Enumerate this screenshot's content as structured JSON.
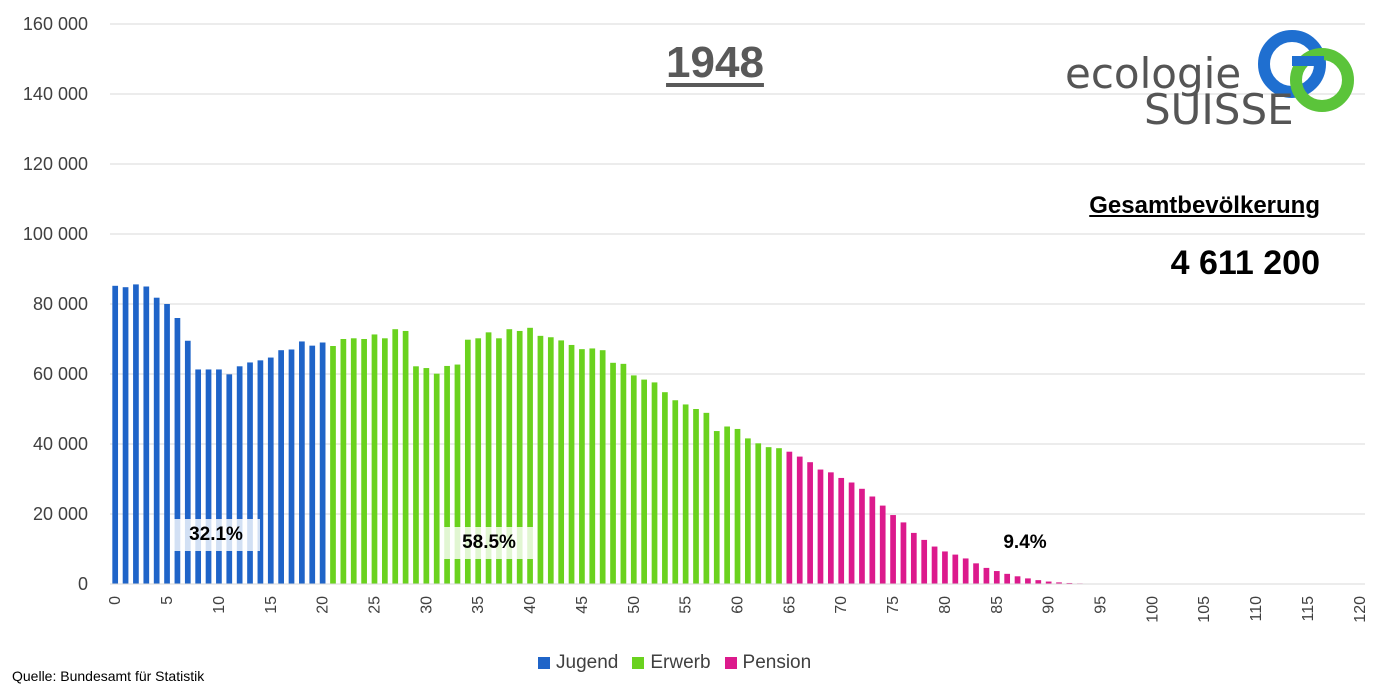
{
  "title": "1948",
  "population": {
    "label": "Gesamtbevölkerung",
    "value": "4 611 200"
  },
  "source": "Quelle: Bundesamt für Statistik",
  "logo": {
    "line1": "ecologie",
    "line2": "SUISSE"
  },
  "shares": {
    "jugend": "32.1%",
    "erwerb": "58.5%",
    "pension": "9.4%"
  },
  "colors": {
    "jugend": "#1f64c8",
    "erwerb": "#6ad21e",
    "pension": "#dc1a8c",
    "logo_blue": "#1f6fd0",
    "logo_green": "#5bc43a"
  },
  "chart_data": {
    "type": "bar",
    "title": "1948",
    "xlabel": "",
    "ylabel": "",
    "xlim": [
      0,
      120
    ],
    "ylim": [
      0,
      160000
    ],
    "y_ticks": [
      "0",
      "20 000",
      "40 000",
      "60 000",
      "80 000",
      "100 000",
      "120 000",
      "140 000",
      "160 000"
    ],
    "x_ticks": [
      "0",
      "5",
      "10",
      "15",
      "20",
      "25",
      "30",
      "35",
      "40",
      "45",
      "50",
      "55",
      "60",
      "65",
      "70",
      "75",
      "80",
      "85",
      "90",
      "95",
      "100",
      "105",
      "110",
      "115",
      "120"
    ],
    "legend": {
      "placement": "bottom",
      "entries": [
        "Jugend",
        "Erwerb",
        "Pension"
      ]
    },
    "grid": true,
    "series": [
      {
        "name": "Jugend",
        "x_start": 0,
        "values": [
          85200,
          84800,
          85600,
          85000,
          81800,
          80000,
          76000,
          69500,
          61300,
          61300,
          61300,
          59900,
          62200,
          63300,
          63900,
          64700,
          66800,
          67000,
          69300,
          68100,
          69000
        ]
      },
      {
        "name": "Erwerb",
        "x_start": 21,
        "values": [
          68000,
          70000,
          70200,
          70000,
          71300,
          70200,
          72800,
          72300,
          62200,
          61700,
          60100,
          62300,
          62700,
          69800,
          70200,
          71900,
          70200,
          72800,
          72300,
          73200,
          70900,
          70500,
          69600,
          68300,
          67100,
          67300,
          66800,
          63200,
          62900,
          59600,
          58400,
          57600,
          54800,
          52500,
          51300,
          50000,
          48900,
          43700,
          45000,
          44300,
          41600,
          40200,
          39100,
          38800
        ]
      },
      {
        "name": "Pension",
        "x_start": 65,
        "values": [
          37800,
          36400,
          34800,
          32700,
          31900,
          30300,
          29000,
          27200,
          25000,
          22400,
          19700,
          17600,
          14600,
          12600,
          10700,
          9300,
          8400,
          7300,
          5900,
          4600,
          3700,
          2900,
          2200,
          1600,
          1100,
          700,
          460,
          290,
          180,
          110,
          65,
          40,
          22,
          12,
          6,
          4
        ]
      }
    ]
  }
}
